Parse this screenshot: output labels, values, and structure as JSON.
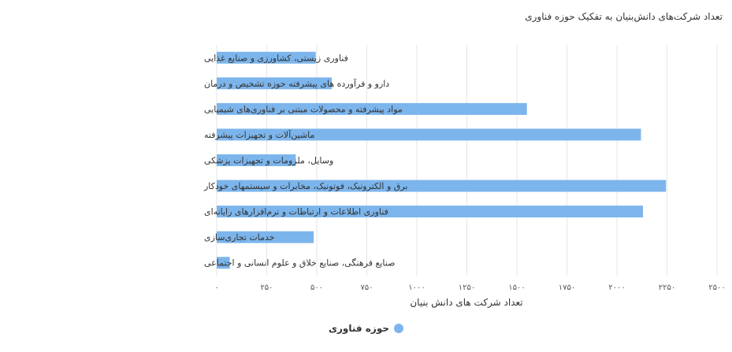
{
  "colors": {
    "bar": "#7cb5ec",
    "grid": "#e6e6e6",
    "text": "#333333"
  },
  "chart_data": {
    "type": "bar",
    "orientation": "horizontal",
    "title": "تعداد شرکت‌های دانش‌بنیان به تفکیک حوزه فناوری",
    "xlabel": "تعداد شرکت های دانش بنیان",
    "ylabel": "",
    "xlim": [
      0,
      2500
    ],
    "xticks": [
      0,
      250,
      500,
      750,
      1000,
      1250,
      1500,
      1750,
      2000,
      2250,
      2500
    ],
    "xtick_labels": [
      "۰",
      "۲۵۰",
      "۵۰۰",
      "۷۵۰",
      "۱۰۰۰",
      "۱۲۵۰",
      "۱۵۰۰",
      "۱۷۵۰",
      "۲۰۰۰",
      "۲۲۵۰",
      "۲۵۰۰"
    ],
    "grid": true,
    "legend_position": "bottom-center",
    "categories": [
      "فناوری زیستی، کشاورزی و صنایع غذایی",
      "دارو و فرآورده های پیشرفته حوزه تشخیص و درمان",
      "مواد پیشرفته و محصولات مبتنی بر فناوری‌های شیمیایی",
      "ماشین‌آلات و تجهیزات پیشرفته",
      "وسایل، ملزومات و تجهیزات پزشکی",
      "برق و الکترونیک، فوتونیک، مخابرات و سیستمهای خودکار",
      "فناوری اطلاعات و ارتباطات و نرم‌افزارهای رایانه‌ای",
      "خدمات تجاری‌سازی",
      "صنایع فرهنگی، صنایع خلاق و علوم انسانی و اجتماعی"
    ],
    "series": [
      {
        "name": "حوزه فناوری",
        "values": [
          495,
          575,
          1550,
          2120,
          395,
          2245,
          2130,
          485,
          65
        ]
      }
    ]
  }
}
